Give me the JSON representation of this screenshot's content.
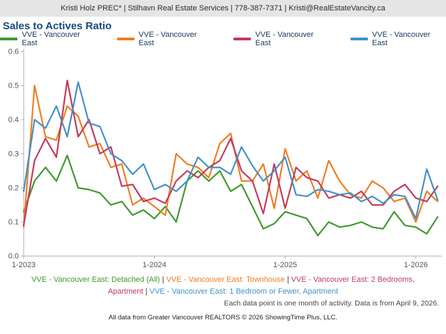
{
  "header": {
    "contact_line": "Kristi Holz PREC* | Stilhavn Real Estate Services | 778-387-7371 | Kristi@RealEstateVancity.ca"
  },
  "title": "Sales to Actives Ratio",
  "colors": {
    "detached": "#3d9a2b",
    "townhouse": "#ef7d21",
    "two_bed_apartment": "#c33a5b",
    "one_bed_apartment": "#4291c8",
    "title_text": "#17497c",
    "legend_text": "#17375e",
    "axis": "#adadad"
  },
  "legend": [
    {
      "label": "VVE - Vancouver East",
      "color": "#3d9a2b"
    },
    {
      "label": "VVE - Vancouver East",
      "color": "#ef7d21"
    },
    {
      "label": "VVE - Vancouver East",
      "color": "#c33a5b"
    },
    {
      "label": "VVE - Vancouver East",
      "color": "#4291c8"
    }
  ],
  "chart_data": {
    "type": "line",
    "title": "Sales to Actives Ratio",
    "xlabel": "",
    "ylabel": "",
    "ylim": [
      0,
      0.6
    ],
    "y_ticks": [
      0.0,
      0.1,
      0.2,
      0.3,
      0.4,
      0.5,
      0.6
    ],
    "grid": false,
    "legend_position": "top",
    "categories": [
      "1-2023",
      "2-2023",
      "3-2023",
      "4-2023",
      "5-2023",
      "6-2023",
      "7-2023",
      "8-2023",
      "9-2023",
      "10-2023",
      "11-2023",
      "12-2023",
      "1-2024",
      "2-2024",
      "3-2024",
      "4-2024",
      "5-2024",
      "6-2024",
      "7-2024",
      "8-2024",
      "9-2024",
      "10-2024",
      "11-2024",
      "12-2024",
      "1-2025",
      "2-2025",
      "3-2025",
      "4-2025",
      "5-2025",
      "6-2025",
      "7-2025",
      "8-2025",
      "9-2025",
      "10-2025",
      "11-2025",
      "12-2025",
      "1-2026",
      "2-2026",
      "3-2026"
    ],
    "x_tick_labels": [
      "1-2023",
      "1-2024",
      "1-2025",
      "1-2026"
    ],
    "x_tick_indices": [
      0,
      12,
      24,
      36
    ],
    "series": [
      {
        "name": "VVE - Vancouver East: Detached (All)",
        "color": "#3d9a2b",
        "values": [
          0.13,
          0.22,
          0.26,
          0.22,
          0.295,
          0.2,
          0.195,
          0.185,
          0.15,
          0.16,
          0.12,
          0.135,
          0.11,
          0.145,
          0.1,
          0.22,
          0.25,
          0.22,
          0.25,
          0.19,
          0.21,
          0.145,
          0.08,
          0.095,
          0.13,
          0.12,
          0.11,
          0.06,
          0.1,
          0.085,
          0.09,
          0.1,
          0.085,
          0.08,
          0.13,
          0.09,
          0.085,
          0.065,
          0.115
        ]
      },
      {
        "name": "VVE - Vancouver East: Townhouse",
        "color": "#ef7d21",
        "values": [
          0.085,
          0.5,
          0.35,
          0.34,
          0.44,
          0.41,
          0.32,
          0.33,
          0.26,
          0.27,
          0.15,
          0.17,
          0.145,
          0.12,
          0.3,
          0.27,
          0.26,
          0.23,
          0.33,
          0.36,
          0.22,
          0.22,
          0.27,
          0.14,
          0.315,
          0.22,
          0.25,
          0.17,
          0.28,
          0.22,
          0.18,
          0.17,
          0.22,
          0.2,
          0.16,
          0.17,
          0.1,
          0.19,
          0.16
        ]
      },
      {
        "name": "VVE - Vancouver East: 2 Bedrooms, Apartment",
        "color": "#c33a5b",
        "values": [
          0.09,
          0.28,
          0.345,
          0.29,
          0.515,
          0.35,
          0.4,
          0.3,
          0.32,
          0.205,
          0.21,
          0.16,
          0.17,
          0.155,
          0.22,
          0.25,
          0.23,
          0.26,
          0.28,
          0.345,
          0.25,
          0.22,
          0.125,
          0.27,
          0.14,
          0.26,
          0.23,
          0.22,
          0.17,
          0.18,
          0.17,
          0.19,
          0.15,
          0.15,
          0.19,
          0.21,
          0.17,
          0.16,
          0.205
        ]
      },
      {
        "name": "VVE - Vancouver East: 1 Bedroom or Fewer, Apartment",
        "color": "#4291c8",
        "values": [
          0.19,
          0.4,
          0.375,
          0.44,
          0.35,
          0.51,
          0.39,
          0.38,
          0.3,
          0.28,
          0.24,
          0.27,
          0.195,
          0.21,
          0.19,
          0.22,
          0.29,
          0.26,
          0.26,
          0.24,
          0.32,
          0.265,
          0.22,
          0.25,
          0.29,
          0.18,
          0.175,
          0.195,
          0.19,
          0.18,
          0.185,
          0.16,
          0.175,
          0.155,
          0.18,
          0.175,
          0.11,
          0.255,
          0.165
        ]
      }
    ]
  },
  "footer": {
    "series_labels": [
      {
        "text": "VVE - Vancouver East: Detached (All)",
        "color": "#3d9a2b"
      },
      {
        "text": "VVE - Vancouver East: Townhouse",
        "color": "#ef7d21"
      },
      {
        "text": "VVE - Vancouver East: 2 Bedrooms, Apartment",
        "color": "#c33a5b"
      },
      {
        "text": "VVE - Vancouver East: 1 Bedroom or Fewer, Apartment",
        "color": "#4291c8"
      }
    ],
    "separator": " | ",
    "note": "Each data point is one month of activity. Data is from April 9, 2026.",
    "attribution": "All data from Greater Vancouver REALTORS © 2026 ShowingTime Plus, LLC."
  }
}
